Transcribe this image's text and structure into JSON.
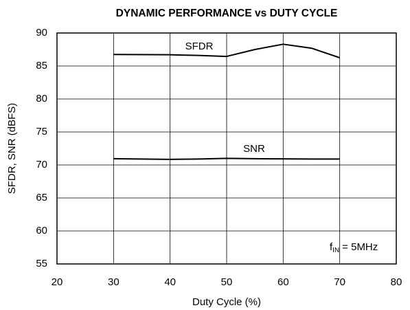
{
  "chart_data": {
    "type": "line",
    "title": "DYNAMIC PERFORMANCE vs DUTY CYCLE",
    "x_label": "Duty Cycle (%)",
    "y_label": "SFDR, SNR (dBFS)",
    "x": [
      30,
      40,
      45,
      50,
      55,
      60,
      65,
      70
    ],
    "series": [
      {
        "name": "SFDR",
        "color": "#000000",
        "values": [
          86.75,
          86.7,
          86.6,
          86.45,
          87.5,
          88.3,
          87.7,
          86.25
        ]
      },
      {
        "name": "SNR",
        "color": "#000000",
        "values": [
          70.95,
          70.85,
          70.9,
          71.0,
          70.95,
          70.92,
          70.9,
          70.9
        ]
      }
    ],
    "annotation": {
      "main": "f",
      "sub": "IN",
      "rest": "= 5MHz"
    },
    "xlim": [
      20,
      80
    ],
    "xticks": [
      20,
      30,
      40,
      50,
      60,
      70,
      80
    ],
    "ylim": [
      55,
      90
    ],
    "yticks": [
      55,
      60,
      65,
      70,
      75,
      80,
      85,
      90
    ],
    "grid": true
  }
}
